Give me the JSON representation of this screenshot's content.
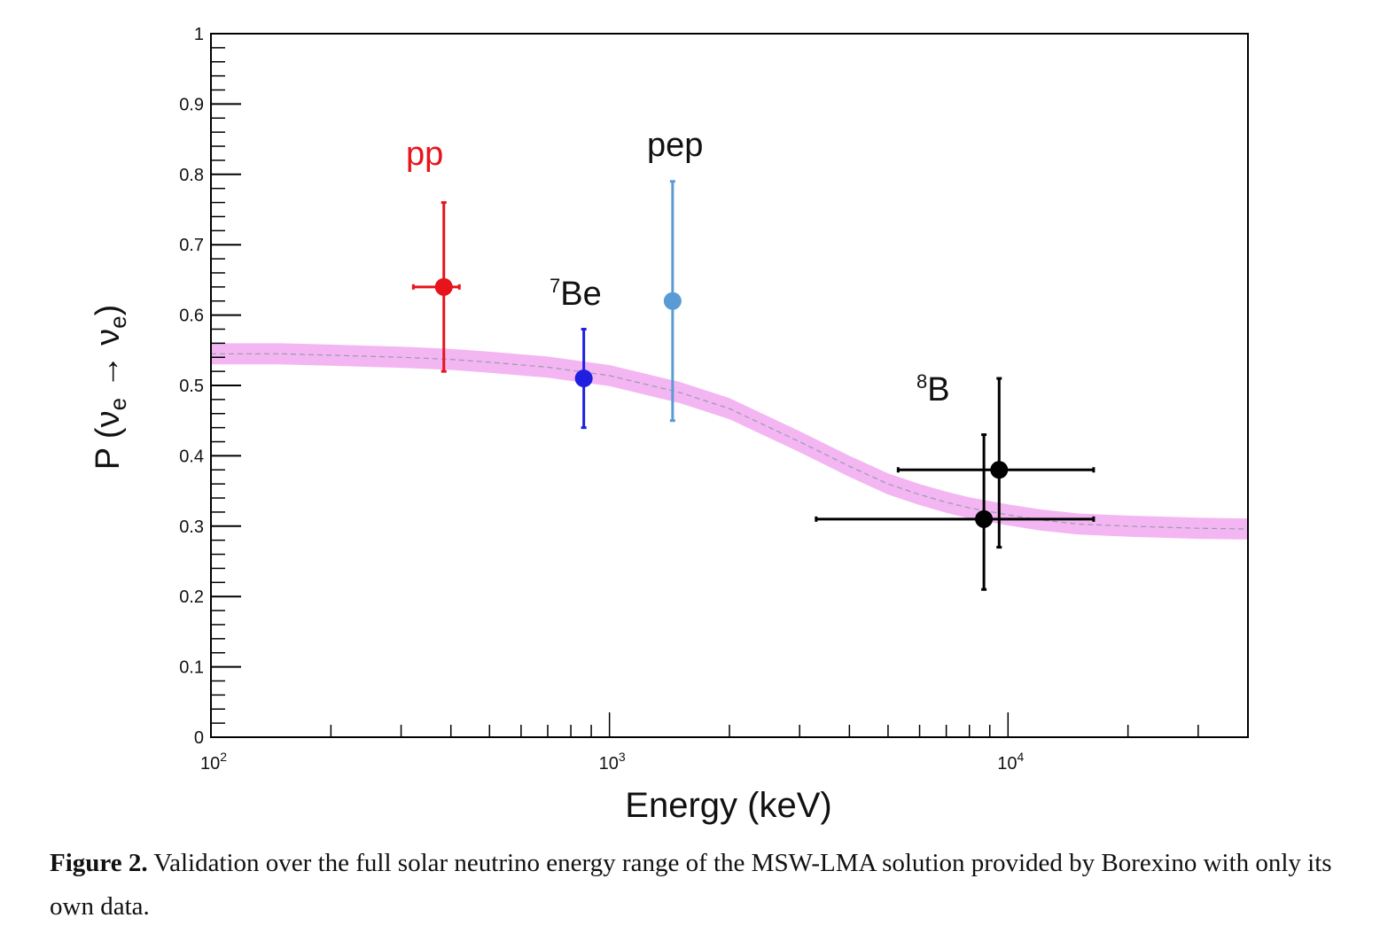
{
  "chart_data": {
    "type": "scatter",
    "xlabel": "Energy (keV)",
    "ylabel_parts": [
      "P (",
      "ν",
      "e",
      " → ",
      "ν",
      "e",
      ")"
    ],
    "xscale": "log",
    "xlim": [
      100,
      40000
    ],
    "ylim": [
      0,
      1
    ],
    "x_ticks": [
      {
        "value": 100,
        "base": "10",
        "exp": "2"
      },
      {
        "value": 1000,
        "base": "10",
        "exp": "3"
      },
      {
        "value": 10000,
        "base": "10",
        "exp": "4"
      }
    ],
    "y_ticks": [
      "0",
      "0.1",
      "0.2",
      "0.3",
      "0.4",
      "0.5",
      "0.6",
      "0.7",
      "0.8",
      "0.9",
      "1"
    ],
    "series": [
      {
        "name": "pp",
        "color": "#e8141c",
        "points": [
          {
            "x": 384,
            "y": 0.64,
            "ylo": 0.52,
            "yhi": 0.76,
            "xlo": 322,
            "xhi": 420
          }
        ]
      },
      {
        "name": "Be",
        "sup": "7",
        "color": "#1f1fe0",
        "points": [
          {
            "x": 862,
            "y": 0.51,
            "ylo": 0.44,
            "yhi": 0.58
          }
        ]
      },
      {
        "name": "pep",
        "color": "#5b9bd5",
        "points": [
          {
            "x": 1440,
            "y": 0.62,
            "ylo": 0.45,
            "yhi": 0.79
          }
        ]
      },
      {
        "name": "B",
        "sup": "8",
        "color": "#000000",
        "points": [
          {
            "x": 8700,
            "y": 0.31,
            "ylo": 0.21,
            "yhi": 0.43,
            "xlo": 3300,
            "xhi": 16400
          },
          {
            "x": 9500,
            "y": 0.38,
            "ylo": 0.27,
            "yhi": 0.51,
            "xlo": 5300,
            "xhi": 16400
          }
        ]
      }
    ],
    "band": {
      "color": "#f3b6f2",
      "line_color": "#9a9ab0",
      "x": [
        100,
        150,
        200,
        300,
        400,
        500,
        700,
        1000,
        1500,
        2000,
        3000,
        4000,
        5000,
        6000,
        7000,
        8000,
        10000,
        12000,
        15000,
        20000,
        30000,
        40000
      ],
      "y": [
        0.545,
        0.545,
        0.543,
        0.54,
        0.537,
        0.533,
        0.526,
        0.514,
        0.49,
        0.467,
        0.42,
        0.385,
        0.36,
        0.345,
        0.334,
        0.326,
        0.316,
        0.309,
        0.303,
        0.3,
        0.297,
        0.296
      ],
      "halfwidth": 0.015
    }
  },
  "caption": {
    "label": "Figure 2.",
    "text": " Validation over the full solar neutrino energy range of the MSW-LMA solution provided by Borexino with only its own data."
  }
}
